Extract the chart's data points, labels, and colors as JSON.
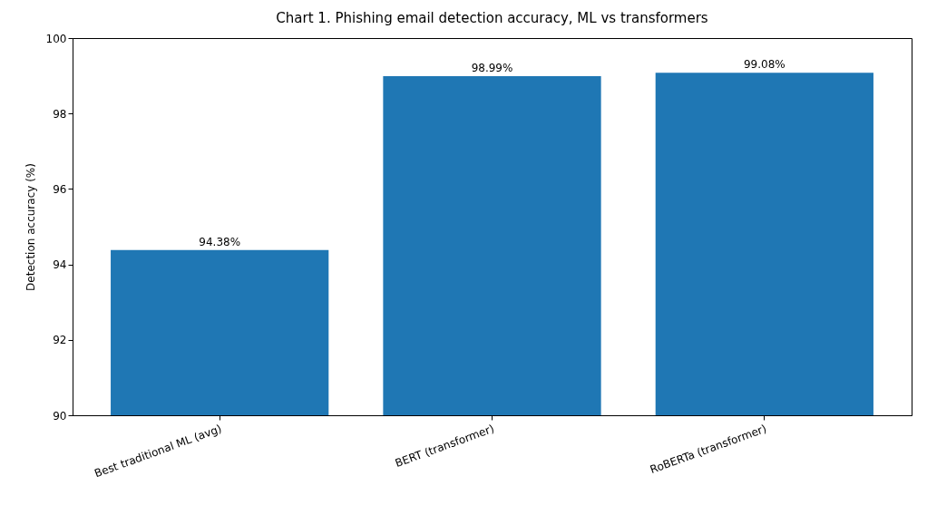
{
  "chart_data": {
    "type": "bar",
    "title": "Chart 1. Phishing email detection accuracy, ML vs transformers",
    "ylabel": "Detection accuracy (%)",
    "categories": [
      "Best traditional ML (avg)",
      "BERT (transformer)",
      "RoBERTa (transformer)"
    ],
    "values": [
      94.38,
      98.99,
      99.08
    ],
    "value_labels": [
      "94.38%",
      "98.99%",
      "99.08%"
    ],
    "color": "#1f77b4",
    "ylim": [
      90,
      100
    ],
    "yticks": [
      90,
      92,
      94,
      96,
      98,
      100
    ],
    "grid": false
  }
}
